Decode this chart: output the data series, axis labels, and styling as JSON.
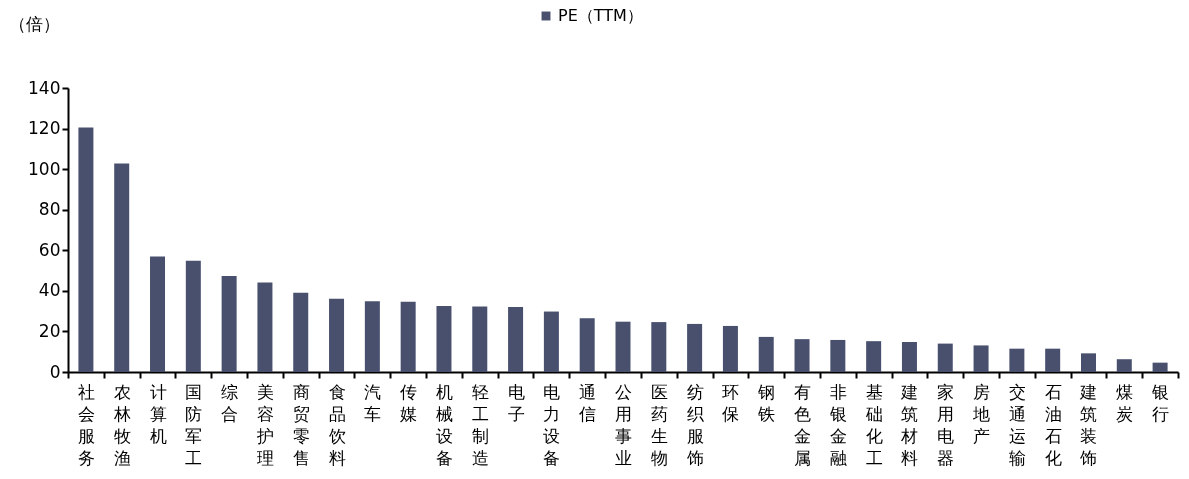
{
  "chart_data": {
    "type": "bar",
    "ylabel": "（倍）",
    "categories": [
      "社会服务",
      "农林牧渔",
      "计算机",
      "国防军工",
      "综合",
      "美容护理",
      "商贸零售",
      "食品饮料",
      "汽车",
      "传媒",
      "机械设备",
      "轻工制造",
      "电子",
      "电力设备",
      "通信",
      "公用事业",
      "医药生物",
      "纺织服饰",
      "环保",
      "钢铁",
      "有色金属",
      "非银金融",
      "基础化工",
      "建筑材料",
      "家用电器",
      "房地产",
      "交通运输",
      "石油石化",
      "建筑装饰",
      "煤炭",
      "银行"
    ],
    "series": [
      {
        "name": "PE（TTM）",
        "color": "#48506e",
        "values": [
          120.5,
          102.8,
          56.9,
          54.8,
          47.3,
          44.1,
          39.1,
          36.1,
          34.9,
          34.6,
          32.5,
          32.3,
          32.1,
          29.8,
          26.5,
          24.8,
          24.6,
          23.7,
          22.7,
          17.3,
          16.2,
          15.8,
          15.2,
          14.8,
          14.0,
          13.1,
          11.5,
          11.5,
          9.2,
          6.3,
          4.6
        ]
      }
    ],
    "ylim": [
      0,
      140
    ],
    "yticks": [
      0,
      20,
      40,
      60,
      80,
      100,
      120,
      140
    ],
    "grid": false,
    "legend": "top"
  }
}
